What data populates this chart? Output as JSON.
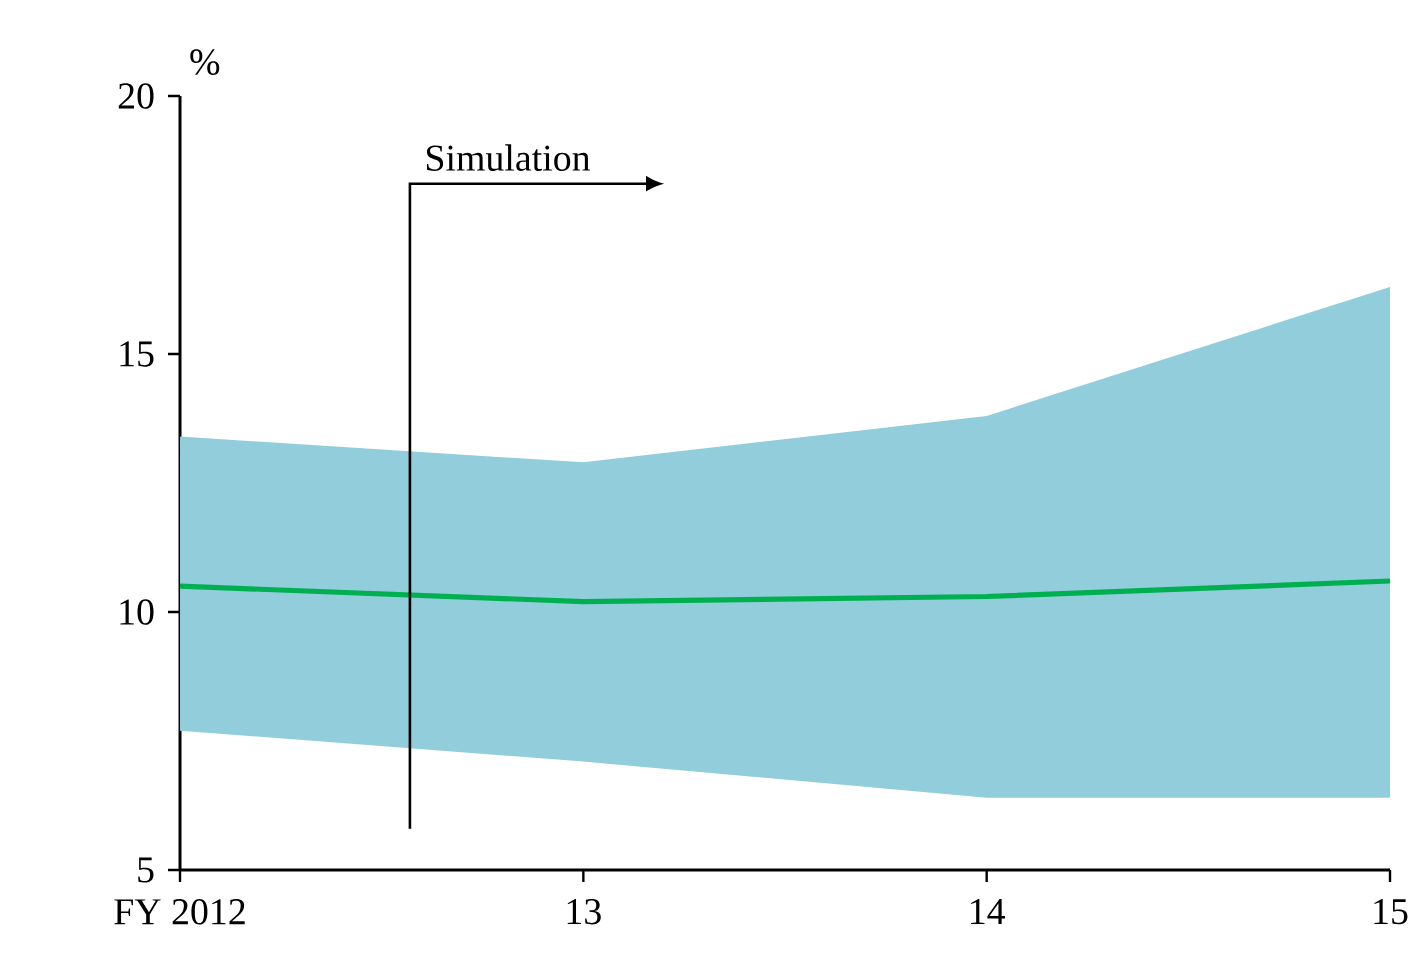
{
  "chart_data": {
    "type": "line",
    "ylabel": "%",
    "categories": [
      "FY 2012",
      "13",
      "14",
      "15"
    ],
    "series": [
      {
        "color": "#00b050",
        "values": [
          10.5,
          10.2,
          10.3,
          10.6
        ],
        "lower": [
          7.7,
          7.1,
          6.4,
          6.4
        ],
        "upper": [
          13.4,
          12.9,
          13.8,
          16.3
        ]
      }
    ],
    "ylim": [
      5,
      20
    ],
    "yticks": [
      5,
      10,
      15,
      20
    ],
    "annotations": [
      "Simulation"
    ],
    "grid": false,
    "legend": false,
    "marker": "none",
    "line_style": "solid"
  }
}
